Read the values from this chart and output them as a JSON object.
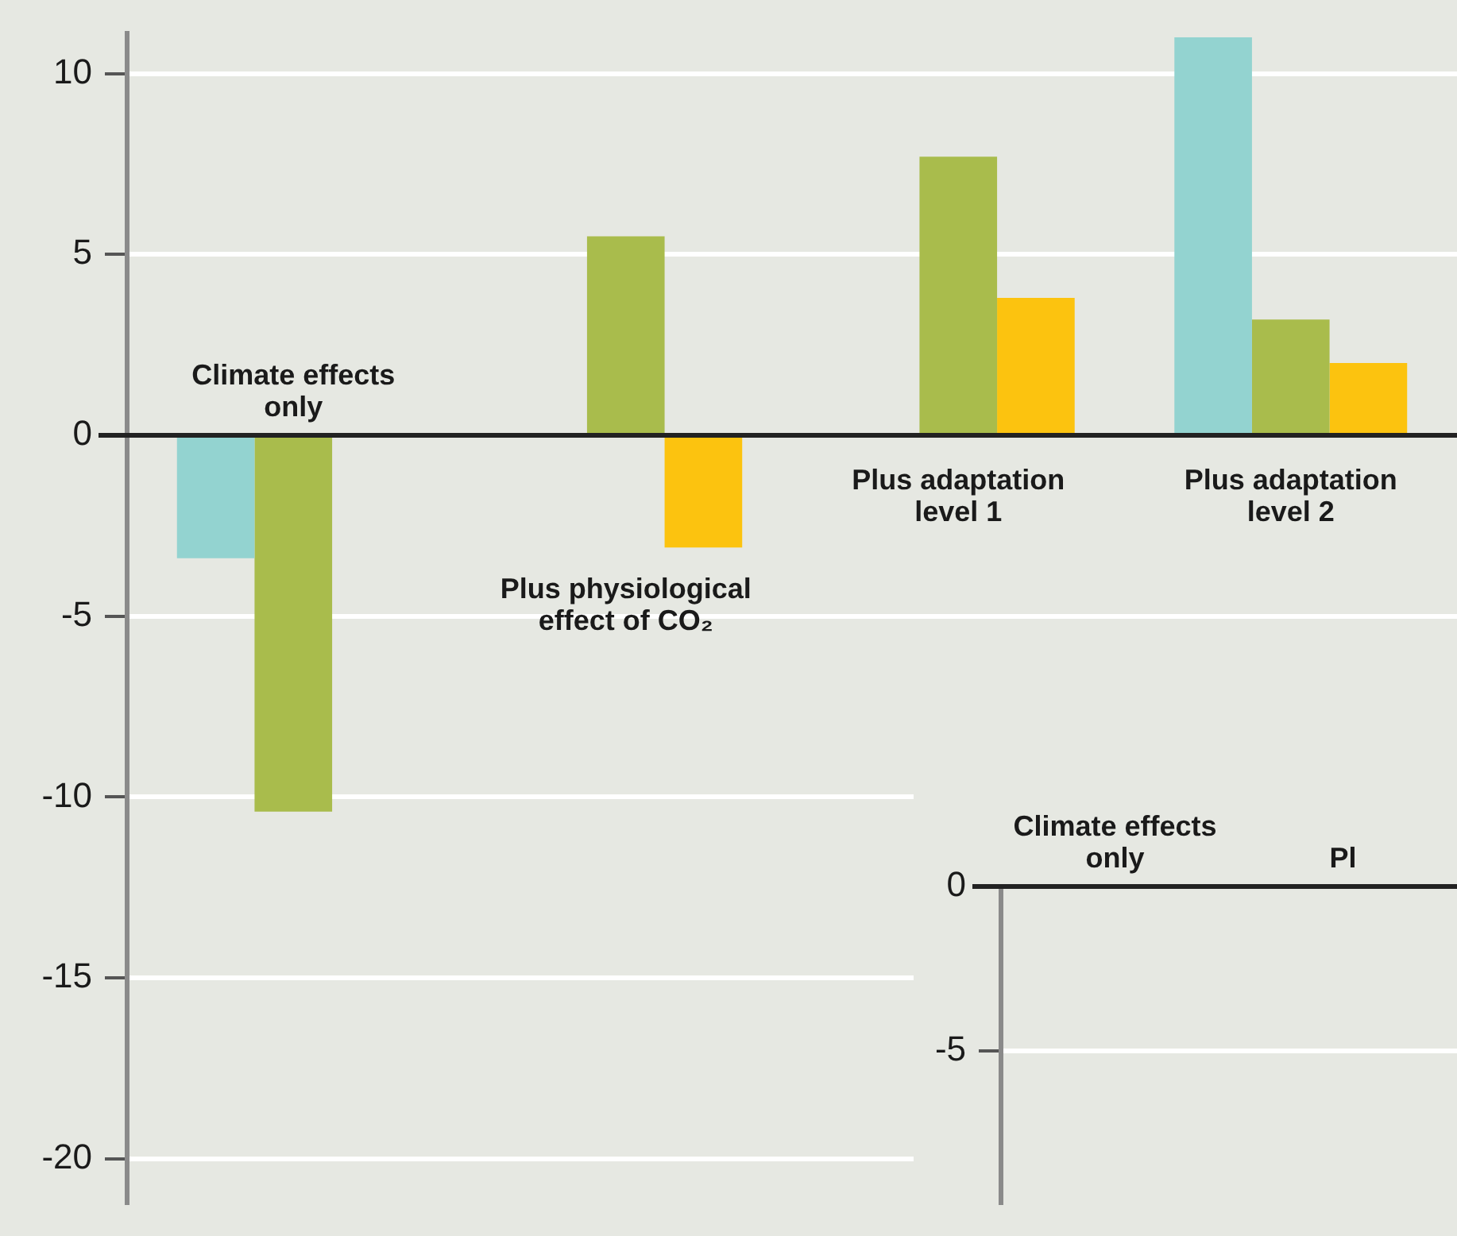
{
  "chart_data": [
    {
      "type": "bar",
      "categories": [
        "Climate effects\nonly",
        "Plus physiological\neffect of CO₂",
        "Plus adaptation\nlevel 1",
        "Plus adaptation\nlevel 2"
      ],
      "series": [
        {
          "color": "#93d3d0",
          "values": [
            -3.4,
            null,
            null,
            11.0
          ]
        },
        {
          "color": "#a9bc4c",
          "values": [
            -10.4,
            5.5,
            7.7,
            3.2
          ]
        },
        {
          "color": "#fcc30f",
          "values": [
            null,
            -3.1,
            3.8,
            2.0
          ]
        }
      ],
      "ylim": [
        -21.2,
        11.1
      ],
      "yticks": [
        -20,
        -15,
        -10,
        -5,
        0,
        5,
        10
      ],
      "grid": "y"
    },
    {
      "type": "bar",
      "categories": [
        "Climate effects\nonly",
        "Pl"
      ],
      "series": [
        {
          "color": "#93d3d0",
          "values": [
            null,
            null
          ]
        },
        {
          "color": "#a9bc4c",
          "values": [
            null,
            null
          ]
        },
        {
          "color": "#fcc30f",
          "values": [
            null,
            null
          ]
        }
      ],
      "ylim": [
        -9.6,
        0
      ],
      "yticks": [
        -5,
        0
      ],
      "grid": "y"
    }
  ]
}
